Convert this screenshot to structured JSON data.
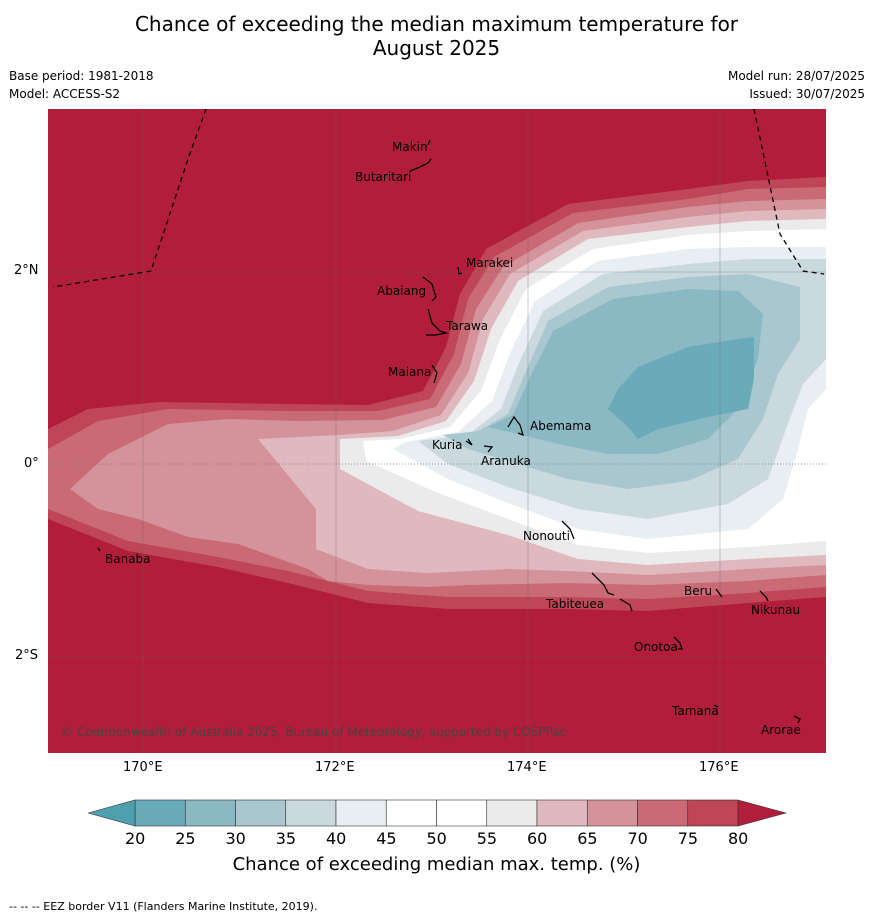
{
  "title_line1": "Chance of exceeding the median maximum temperature for",
  "title_line2": "August 2025",
  "meta": {
    "base_period": "Base period: 1981-2018",
    "model": "Model: ACCESS-S2",
    "model_run": "Model run: 28/07/2025",
    "issued": "Issued: 30/07/2025"
  },
  "axes": {
    "lat_ticks": [
      "2°N",
      "0°",
      "2°S"
    ],
    "lon_ticks": [
      "170°E",
      "172°E",
      "174°E",
      "176°E"
    ]
  },
  "islands": [
    "Makin",
    "Butaritari",
    "Marakei",
    "Abaiang",
    "Tarawa",
    "Maiana",
    "Abemama",
    "Kuria",
    "Aranuka",
    "Banaba",
    "Nonouti",
    "Beru",
    "Nikunau",
    "Tabiteuea",
    "Onotoa",
    "Tamana",
    "Arorae"
  ],
  "copyright": "© Commonwealth of Australia 2025, Bureau of Meteorology, supported by COSPPac",
  "colorbar": {
    "ticks": [
      "20",
      "25",
      "30",
      "35",
      "40",
      "45",
      "50",
      "55",
      "60",
      "65",
      "70",
      "75",
      "80"
    ],
    "colors": [
      "#6aabb9",
      "#8ab9c4",
      "#a8c7ce",
      "#cad9de",
      "#e8eef1",
      "#ffffff",
      "#ffffff",
      "#ebebeb",
      "#e0b9bf",
      "#d4929b",
      "#c96a75",
      "#be4656"
    ],
    "under_color": "#4fa0ae",
    "over_color": "#b11d3a",
    "label": "Chance of exceeding median max. temp. (%)"
  },
  "footer": "--  --  -- EEZ border V11 (Flanders Marine Institute, 2019)."
}
